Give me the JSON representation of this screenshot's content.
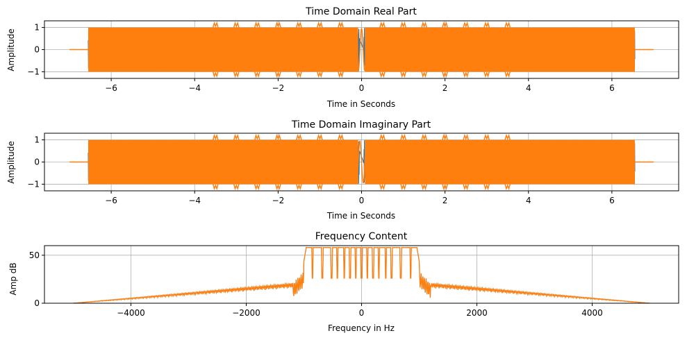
{
  "colors": {
    "blue": "#1f77b4",
    "orange": "#ff7f0e",
    "grid": "#b0b0b0",
    "axis": "#000000"
  },
  "chart_data": [
    {
      "type": "line",
      "title": "Time Domain Real Part",
      "xlabel": "Time in Seconds",
      "ylabel": "Amplitude",
      "xlim": [
        -7.6,
        7.6
      ],
      "ylim": [
        -1.3,
        1.3
      ],
      "xticks": [
        -6,
        -4,
        -2,
        0,
        2,
        4,
        6
      ],
      "xtick_labels": [
        "−6",
        "−4",
        "−2",
        "0",
        "2",
        "4",
        "6"
      ],
      "yticks": [
        -1,
        0,
        1
      ],
      "ytick_labels": [
        "−1",
        "0",
        "1"
      ],
      "grid": true,
      "signal": {
        "t_start": -7.0,
        "t_end": 7.0,
        "burst_start": -6.55,
        "burst_end": 6.55,
        "gap": 0.08,
        "amplitude": 1.0,
        "peak_amplitude": 1.2,
        "peak_spacing": 1.0,
        "peak_offset": 0.5
      },
      "series": [
        {
          "color": "#1f77b4"
        },
        {
          "color": "#ff7f0e"
        }
      ]
    },
    {
      "type": "line",
      "title": "Time Domain Imaginary Part",
      "xlabel": "Time in Seconds",
      "ylabel": "Amplitude",
      "xlim": [
        -7.6,
        7.6
      ],
      "ylim": [
        -1.3,
        1.3
      ],
      "xticks": [
        -6,
        -4,
        -2,
        0,
        2,
        4,
        6
      ],
      "xtick_labels": [
        "−6",
        "−4",
        "−2",
        "0",
        "2",
        "4",
        "6"
      ],
      "yticks": [
        -1,
        0,
        1
      ],
      "ytick_labels": [
        "−1",
        "0",
        "1"
      ],
      "grid": true,
      "signal": {
        "t_start": -7.0,
        "t_end": 7.0,
        "burst_start": -6.55,
        "burst_end": 6.55,
        "gap": 0.08,
        "amplitude": 1.0,
        "peak_amplitude": 1.2,
        "peak_spacing": 1.0,
        "peak_offset": 0.5
      },
      "series": [
        {
          "color": "#1f77b4"
        },
        {
          "color": "#ff7f0e"
        }
      ]
    },
    {
      "type": "line",
      "title": "Frequency Content",
      "xlabel": "Frequency in Hz",
      "ylabel": "Amp dB",
      "xlim": [
        -5500,
        5500
      ],
      "ylim": [
        0,
        60
      ],
      "xticks": [
        -4000,
        -2000,
        0,
        2000,
        4000
      ],
      "xtick_labels": [
        "−4000",
        "−2000",
        "0",
        "2000",
        "4000"
      ],
      "yticks": [
        0,
        50
      ],
      "ytick_labels": [
        "0",
        "50"
      ],
      "grid": true,
      "spectrum": {
        "f_start": -5000,
        "f_end": 5000,
        "passband": [
          -1000,
          1000
        ],
        "passband_level": 58,
        "notches": [
          -850,
          -680,
          -520,
          -420,
          -300,
          -200,
          -100,
          0,
          100,
          200,
          300,
          420,
          520,
          680,
          850
        ],
        "notch_depth": 26,
        "edge_spike": 25
      },
      "series": [
        {
          "color": "#1f77b4"
        },
        {
          "color": "#ff7f0e"
        }
      ]
    }
  ]
}
